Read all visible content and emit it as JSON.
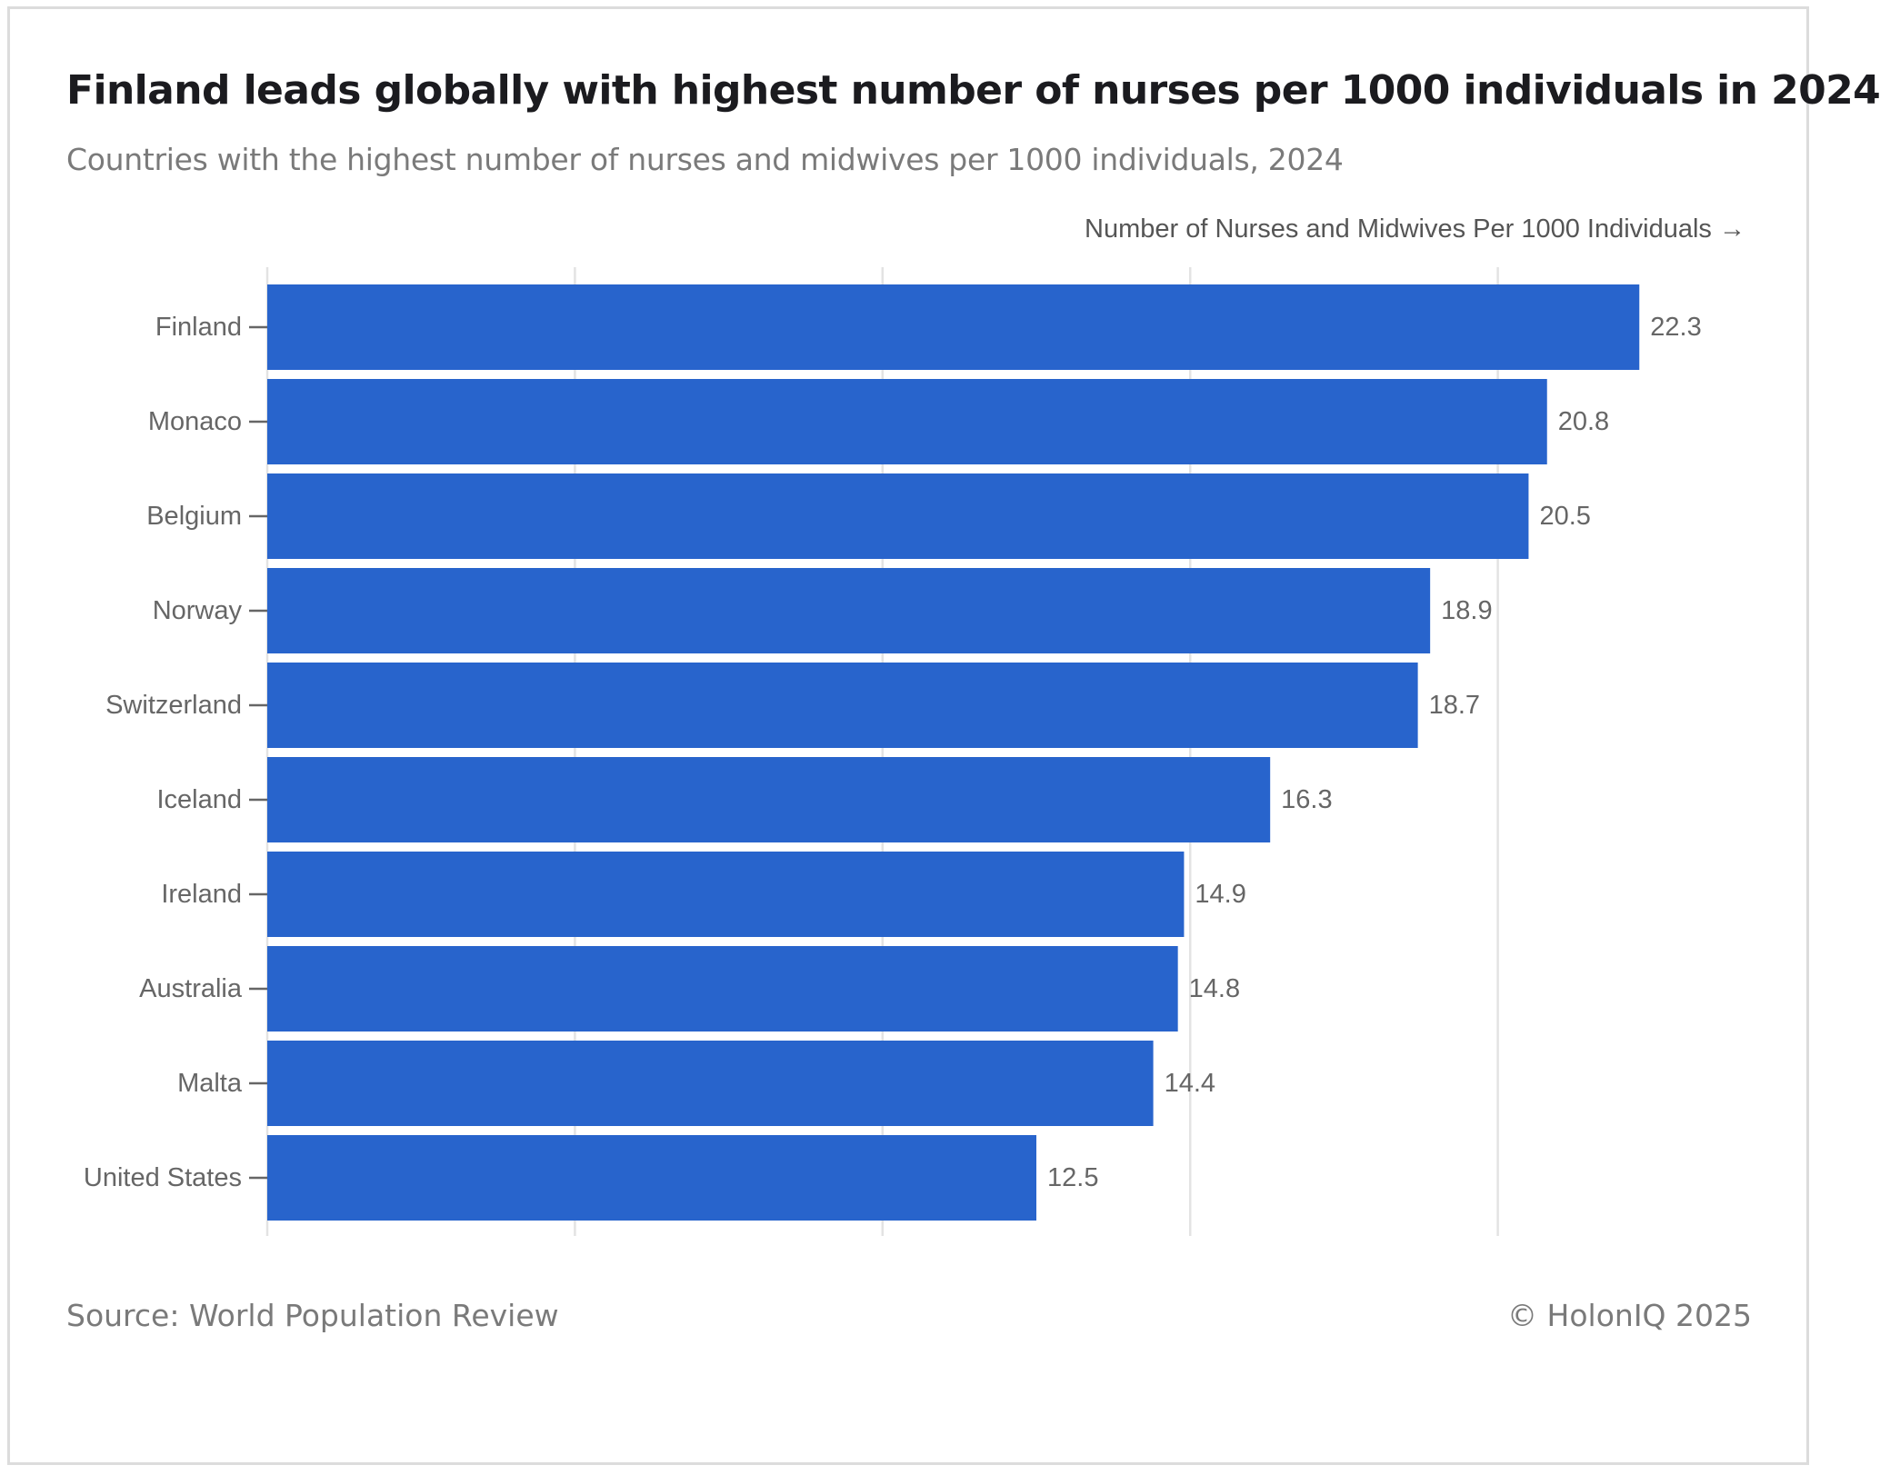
{
  "header": {
    "title": "Finland leads globally with highest number of nurses per 1000 individuals in 2024",
    "subtitle": "Countries with the highest number of nurses and midwives per 1000 individuals, 2024"
  },
  "footer": {
    "source": "Source: World Population Review",
    "copyright": "© HolonIQ 2025"
  },
  "colors": {
    "bar": "#2864cc",
    "grid": "#e3e3e3",
    "tick_text": "#666666",
    "label_text": "#666666"
  },
  "chart_data": {
    "type": "bar",
    "orientation": "horizontal",
    "title": "Finland leads globally with highest number of nurses per 1000 individuals in 2024",
    "subtitle": "Countries with the highest number of nurses and midwives per 1000 individuals, 2024",
    "xlabel": "Number of Nurses and Midwives Per 1000 Individuals →",
    "ylabel": "",
    "xlim": [
      0,
      25
    ],
    "grid_values": [
      0,
      5,
      10,
      15,
      20
    ],
    "grid": true,
    "categories": [
      "Finland",
      "Monaco",
      "Belgium",
      "Norway",
      "Switzerland",
      "Iceland",
      "Ireland",
      "Australia",
      "Malta",
      "United States"
    ],
    "values": [
      22.3,
      20.8,
      20.5,
      18.9,
      18.7,
      16.3,
      14.9,
      14.8,
      14.4,
      12.5
    ],
    "value_labels": [
      "22.3",
      "20.8",
      "20.5",
      "18.9",
      "18.7",
      "16.3",
      "14.9",
      "14.8",
      "14.4",
      "12.5"
    ]
  }
}
